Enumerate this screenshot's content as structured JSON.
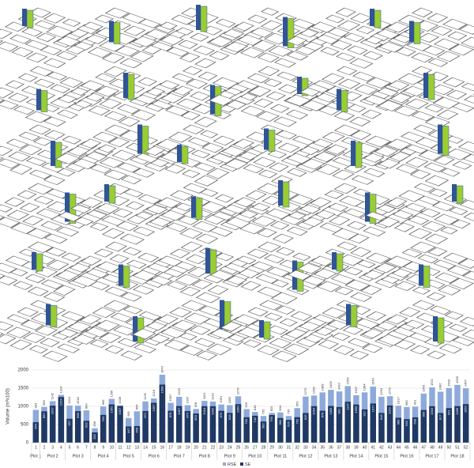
{
  "chart_data": {
    "type": "bar",
    "y_label": "Volume (m³x100)",
    "groups": [
      {
        "name": "Plot 1",
        "categories": [
          "1"
        ]
      },
      {
        "name": "Plot 2",
        "categories": [
          "2",
          "3",
          "4"
        ]
      },
      {
        "name": "Plot 3",
        "categories": [
          "5",
          "6",
          "7"
        ]
      },
      {
        "name": "Plot 4",
        "categories": [
          "8",
          "9",
          "10"
        ]
      },
      {
        "name": "Plot 5",
        "categories": [
          "11",
          "12",
          "13"
        ]
      },
      {
        "name": "Plot 6",
        "categories": [
          "14",
          "15",
          "16"
        ]
      },
      {
        "name": "Plot 7",
        "categories": [
          "17",
          "18",
          "19"
        ]
      },
      {
        "name": "Plot 8",
        "categories": [
          "20",
          "21",
          "22"
        ]
      },
      {
        "name": "Plot 9",
        "categories": [
          "23",
          "24",
          "25"
        ]
      },
      {
        "name": "Plot 10",
        "categories": [
          "26",
          "27",
          "28"
        ]
      },
      {
        "name": "Plot 11",
        "categories": [
          "29",
          "30",
          "31"
        ]
      },
      {
        "name": "Plot 12",
        "categories": [
          "32",
          "33",
          "34"
        ]
      },
      {
        "name": "Plot 13",
        "categories": [
          "35",
          "36",
          "37"
        ]
      },
      {
        "name": "Plot 14",
        "categories": [
          "38",
          "39",
          "40"
        ]
      },
      {
        "name": "Plot 15",
        "categories": [
          "41",
          "42",
          "43"
        ]
      },
      {
        "name": "Plot 16",
        "categories": [
          "44",
          "45",
          "46"
        ]
      },
      {
        "name": "Plot 17",
        "categories": [
          "47",
          "48",
          "49"
        ]
      },
      {
        "name": "Plot 18",
        "categories": [
          "50",
          "51",
          "52"
        ]
      }
    ],
    "series": [
      {
        "name": "RSE",
        "color": "#8eaadb",
        "values": [
          903,
          983,
          1142,
          1314,
          1024,
          1018,
          890,
          398,
          996,
          1206,
          1028,
          681,
          864,
          1135,
          1218,
          1870,
          1097,
          1263,
          1032,
          928,
          1151,
          1133,
          1051,
          1032,
          1276,
          925,
          846,
          735,
          820,
          834,
          736,
          953,
          1270,
          1298,
          1383,
          1455,
          1410,
          1558,
          1307,
          1384,
          1543,
          1264,
          1279,
          1017,
          980,
          991,
          1350,
          1521,
          1402,
          1503,
          1590,
          1497
        ]
      },
      {
        "name": "SE",
        "color": "#1f3864",
        "values": [
          564,
          862,
          1017,
          1254,
          657,
          868,
          602,
          282,
          764,
          1052,
          1007,
          447,
          458,
          871,
          1097,
          1598,
          878,
          1007,
          870,
          803,
          1004,
          1002,
          876,
          818,
          1060,
          700,
          742,
          582,
          760,
          680,
          626,
          702,
          816,
          1004,
          878,
          1009,
          981,
          1125,
          1050,
          917,
          1077,
          818,
          1022,
          686,
          649,
          698,
          899,
          1003,
          817,
          951,
          1006,
          1062
        ]
      }
    ],
    "ylim": [
      0,
      2000
    ],
    "yticks": [
      0,
      500,
      1000,
      1500,
      2000
    ],
    "grid": true,
    "legend": "bottom"
  }
}
